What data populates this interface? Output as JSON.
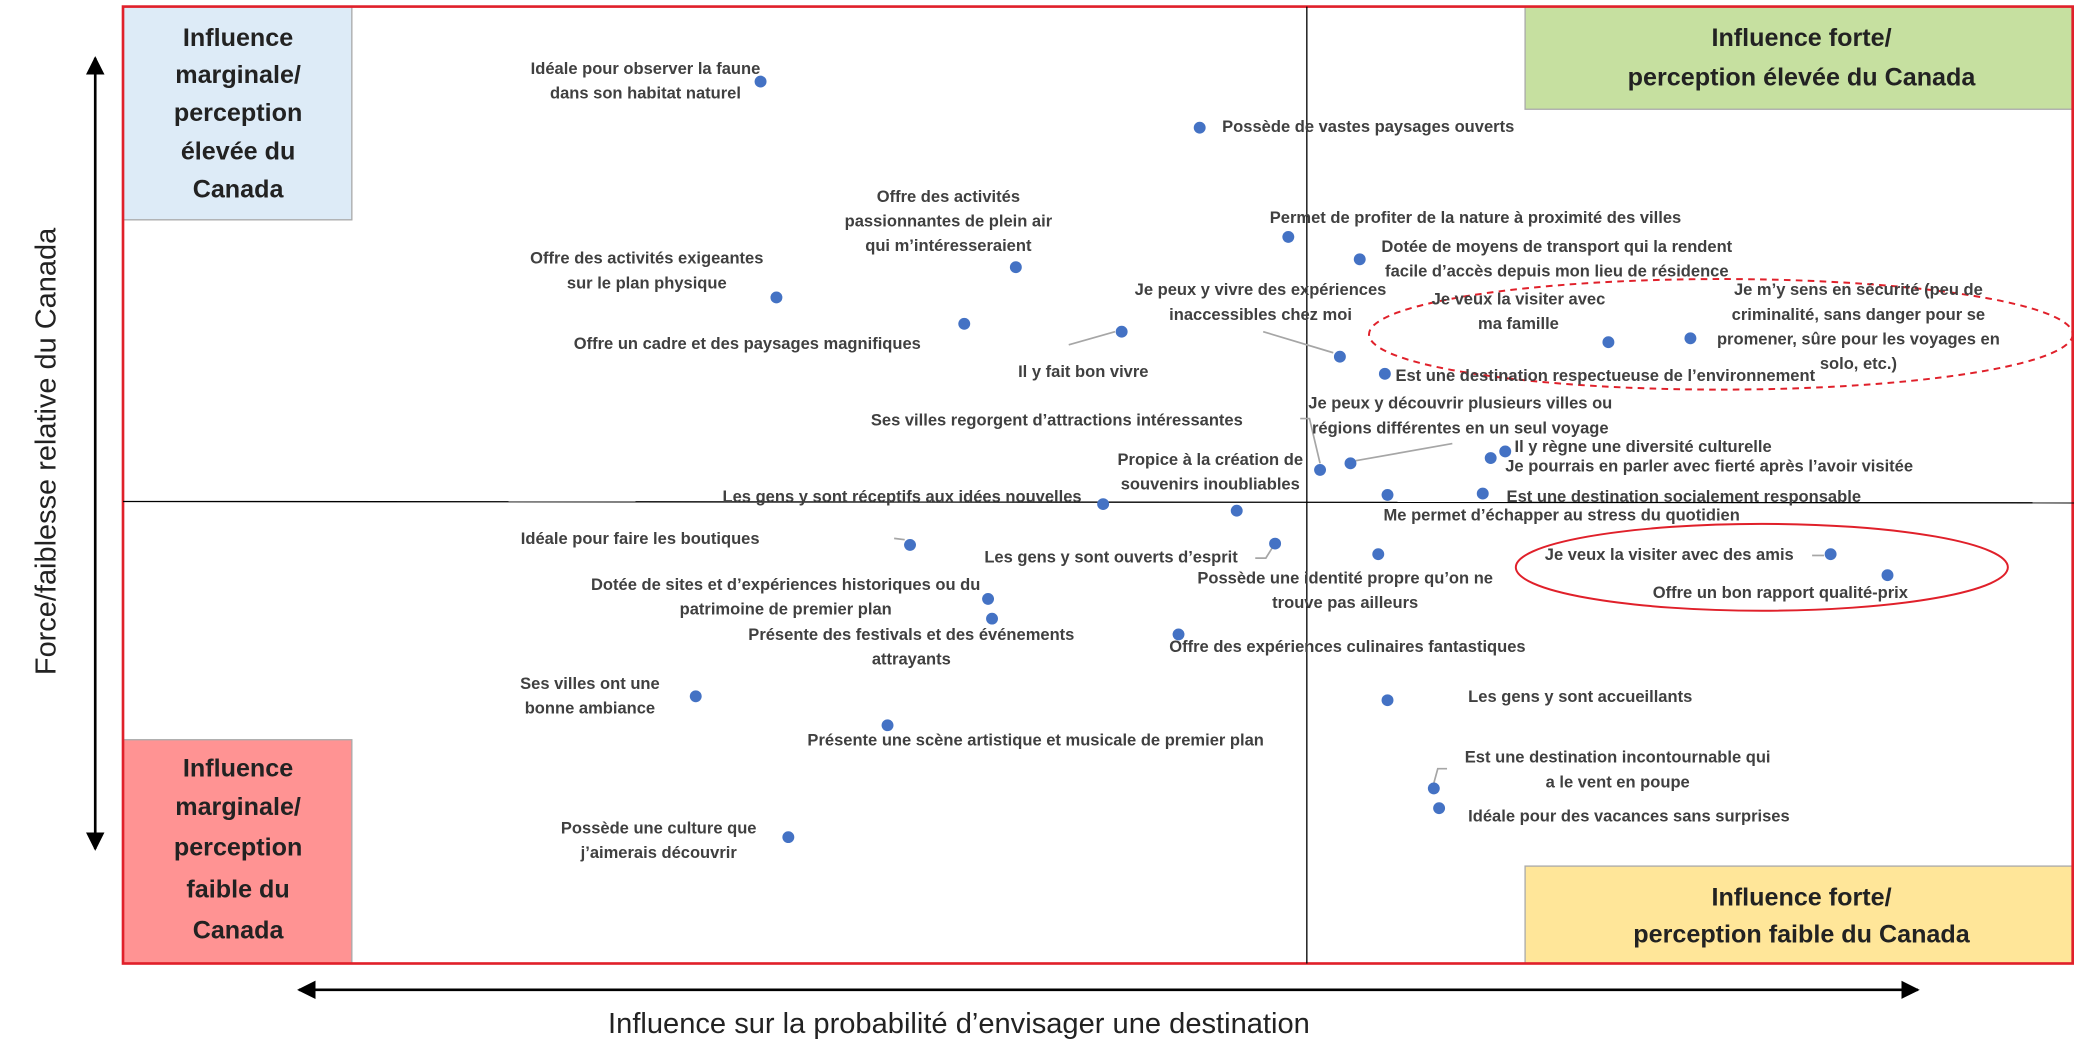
{
  "quadrants": {
    "top_left": [
      "Influence",
      "marginale/",
      "perception",
      "élevée du",
      "Canada"
    ],
    "bottom_left": [
      "Influence",
      "marginale/",
      "perception",
      "faible du",
      "Canada"
    ],
    "top_right": [
      "Influence forte/",
      "perception élevée du Canada"
    ],
    "bottom_right": [
      "Influence forte/",
      "perception faible du Canada"
    ]
  },
  "y_axis_label": "Force/faiblesse relative du Canada",
  "x_axis_label": "Influence sur la probabilité d’envisager une destination",
  "points": [
    {
      "label": [
        "Idéale pour observer la faune",
        "dans son habitat naturel"
      ]
    },
    {
      "label": [
        "Possède de vastes paysages ouverts"
      ]
    },
    {
      "label": [
        "Permet de profiter de la nature à proximité des villes"
      ]
    },
    {
      "label": [
        "Dotée de moyens de transport qui la rendent",
        "facile d’accès depuis mon lieu de résidence"
      ]
    },
    {
      "label": [
        "Offre des activités",
        "passionnantes de plein air",
        "qui m’intéresseraient"
      ]
    },
    {
      "label": [
        "Offre des activités exigeantes",
        "sur le plan physique"
      ]
    },
    {
      "label": [
        "Offre un cadre et des paysages magnifiques"
      ]
    },
    {
      "label": [
        "Il y fait bon vivre"
      ]
    },
    {
      "label": [
        "Je peux y vivre des expériences",
        "inaccessibles chez moi"
      ]
    },
    {
      "label": [
        "Est une destination respectueuse de l’environnement"
      ]
    },
    {
      "label": [
        "Je veux la visiter avec",
        "ma famille"
      ]
    },
    {
      "label": [
        "Je m’y sens en sécurité (peu de",
        "criminalité, sans danger pour se",
        "promener, sûre pour les voyages en",
        "solo, etc.)"
      ]
    },
    {
      "label": [
        "Ses villes regorgent d’attractions intéressantes"
      ]
    },
    {
      "label": [
        "Je peux y découvrir plusieurs villes ou",
        "régions différentes en un seul voyage"
      ]
    },
    {
      "label": [
        "Propice à la création de",
        "souvenirs inoubliables"
      ]
    },
    {
      "label": [
        "Il y règne une diversité culturelle"
      ]
    },
    {
      "label": [
        "Je pourrais en parler avec fierté après l’avoir visitée"
      ]
    },
    {
      "label": [
        "Les gens y sont réceptifs aux idées nouvelles"
      ]
    },
    {
      "label": [
        "Est une destination socialement responsable"
      ]
    },
    {
      "label": [
        "Me permet d’échapper au stress du quotidien"
      ]
    },
    {
      "label": [
        "Idéale pour faire les boutiques"
      ]
    },
    {
      "label": [
        "Les gens y sont ouverts d’esprit"
      ]
    },
    {
      "label": [
        "Possède une identité propre qu’on ne",
        "trouve pas ailleurs"
      ]
    },
    {
      "label": [
        "Je veux la visiter avec des amis"
      ]
    },
    {
      "label": [
        "Offre un bon rapport qualité-prix"
      ]
    },
    {
      "label": [
        "Dotée de sites et d’expériences historiques ou du",
        "patrimoine de premier plan"
      ]
    },
    {
      "label": [
        "Présente des festivals et des événements",
        "attrayants"
      ]
    },
    {
      "label": [
        "Offre des expériences culinaires fantastiques"
      ]
    },
    {
      "label": [
        "Ses villes ont une",
        "bonne ambiance"
      ]
    },
    {
      "label": [
        "Les gens y sont accueillants"
      ]
    },
    {
      "label": [
        "Présente une scène artistique et musicale de premier plan"
      ]
    },
    {
      "label": [
        "Est une destination incontournable qui",
        "a le vent en poupe"
      ]
    },
    {
      "label": [
        "Idéale pour des vacances sans surprises"
      ]
    },
    {
      "label": [
        "Possède une culture que",
        "j’aimerais découvrir"
      ]
    }
  ]
}
